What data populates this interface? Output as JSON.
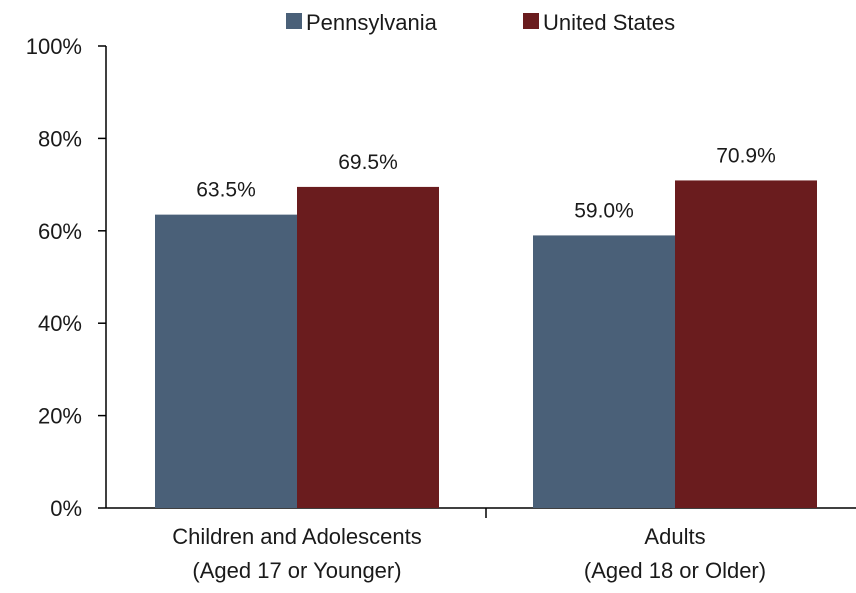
{
  "chart_data": {
    "type": "bar",
    "title": "",
    "xlabel": "",
    "ylabel": "",
    "categories": [
      [
        "Children and Adolescents",
        "(Aged 17 or Younger)"
      ],
      [
        "Adults",
        "(Aged 18 or Older)"
      ]
    ],
    "series": [
      {
        "name": "Pennsylvania",
        "color": "#4a6078",
        "values": [
          63.5,
          59.0
        ],
        "labels": [
          "63.5%",
          "59.0%"
        ]
      },
      {
        "name": "United States",
        "color": "#6a1c1e",
        "values": [
          69.5,
          70.9
        ],
        "labels": [
          "69.5%",
          "70.9%"
        ]
      }
    ],
    "ylim": [
      0,
      100
    ],
    "yticks": [
      0,
      20,
      40,
      60,
      80,
      100
    ],
    "ytick_labels": [
      "0%",
      "20%",
      "40%",
      "60%",
      "80%",
      "100%"
    ],
    "grid": false,
    "legend_position": "top"
  }
}
